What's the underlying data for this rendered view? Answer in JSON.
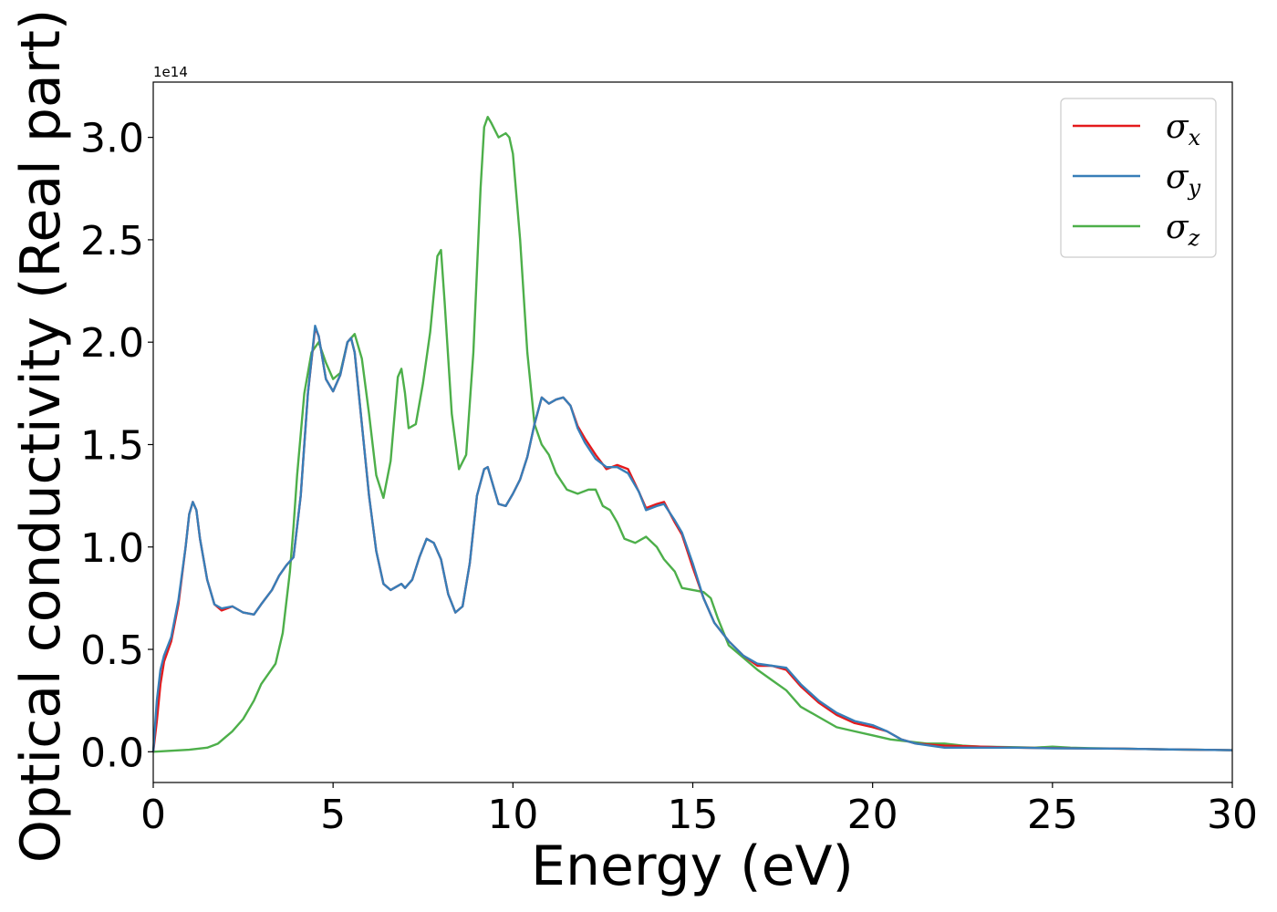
{
  "chart_data": {
    "type": "line",
    "xlabel": "Energy (eV)",
    "ylabel": "Optical conductivity (Real part)",
    "y_offset_label": "1e14",
    "xlim": [
      0,
      30
    ],
    "ylim": [
      -0.15,
      3.27
    ],
    "x_ticks": [
      0,
      5,
      10,
      15,
      20,
      25,
      30
    ],
    "x_tick_labels": [
      "0",
      "5",
      "10",
      "15",
      "20",
      "25",
      "30"
    ],
    "y_ticks": [
      0.0,
      0.5,
      1.0,
      1.5,
      2.0,
      2.5,
      3.0
    ],
    "y_tick_labels": [
      "0.0",
      "0.5",
      "1.0",
      "1.5",
      "2.0",
      "2.5",
      "3.0"
    ],
    "grid": false,
    "legend_position": "top-right",
    "series": [
      {
        "name": "σx",
        "symbol": "σ",
        "subscript": "x",
        "color": "#e41a1c",
        "x": [
          0,
          0.1,
          0.2,
          0.3,
          0.5,
          0.7,
          0.9,
          1.0,
          1.1,
          1.2,
          1.3,
          1.5,
          1.7,
          1.9,
          2.2,
          2.5,
          2.8,
          3.0,
          3.3,
          3.5,
          3.7,
          3.9,
          4.1,
          4.3,
          4.5,
          4.6,
          4.8,
          5.0,
          5.2,
          5.4,
          5.5,
          5.6,
          5.8,
          6.0,
          6.2,
          6.4,
          6.6,
          6.8,
          6.9,
          7.0,
          7.2,
          7.4,
          7.6,
          7.8,
          8.0,
          8.2,
          8.4,
          8.6,
          8.8,
          9.0,
          9.2,
          9.3,
          9.4,
          9.6,
          9.8,
          10.0,
          10.2,
          10.4,
          10.6,
          10.8,
          11.0,
          11.2,
          11.4,
          11.6,
          11.8,
          12.0,
          12.3,
          12.6,
          12.9,
          13.2,
          13.5,
          13.7,
          14.0,
          14.2,
          14.5,
          14.7,
          15.0,
          15.3,
          15.6,
          16.0,
          16.4,
          16.8,
          17.2,
          17.6,
          18.0,
          18.5,
          19.0,
          19.5,
          20.0,
          20.4,
          20.8,
          21.2,
          22.0,
          23.0,
          24.0,
          25.0,
          26.0,
          27.0,
          28.0,
          29.0,
          30.0
        ],
        "values": [
          0.0,
          0.15,
          0.33,
          0.44,
          0.54,
          0.72,
          1.0,
          1.16,
          1.22,
          1.18,
          1.04,
          0.84,
          0.72,
          0.69,
          0.71,
          0.68,
          0.67,
          0.72,
          0.79,
          0.86,
          0.91,
          0.95,
          1.25,
          1.75,
          2.07,
          2.03,
          1.82,
          1.76,
          1.84,
          2.0,
          2.02,
          1.95,
          1.6,
          1.25,
          0.98,
          0.82,
          0.79,
          0.81,
          0.82,
          0.8,
          0.84,
          0.95,
          1.04,
          1.02,
          0.94,
          0.77,
          0.68,
          0.71,
          0.92,
          1.25,
          1.38,
          1.39,
          1.33,
          1.21,
          1.2,
          1.26,
          1.33,
          1.44,
          1.6,
          1.73,
          1.7,
          1.72,
          1.73,
          1.69,
          1.59,
          1.53,
          1.45,
          1.38,
          1.4,
          1.38,
          1.27,
          1.19,
          1.21,
          1.22,
          1.12,
          1.06,
          0.9,
          0.75,
          0.63,
          0.54,
          0.47,
          0.42,
          0.42,
          0.4,
          0.32,
          0.24,
          0.18,
          0.14,
          0.12,
          0.1,
          0.06,
          0.04,
          0.03,
          0.025,
          0.02,
          0.018,
          0.016,
          0.015,
          0.012,
          0.01,
          0.008
        ]
      },
      {
        "name": "σy",
        "symbol": "σ",
        "subscript": "y",
        "color": "#377eb8",
        "x": [
          0,
          0.1,
          0.2,
          0.3,
          0.5,
          0.7,
          0.9,
          1.0,
          1.1,
          1.2,
          1.3,
          1.5,
          1.7,
          1.9,
          2.2,
          2.5,
          2.8,
          3.0,
          3.3,
          3.5,
          3.7,
          3.9,
          4.1,
          4.3,
          4.5,
          4.6,
          4.8,
          5.0,
          5.2,
          5.4,
          5.5,
          5.6,
          5.8,
          6.0,
          6.2,
          6.4,
          6.6,
          6.8,
          6.9,
          7.0,
          7.2,
          7.4,
          7.6,
          7.8,
          8.0,
          8.2,
          8.4,
          8.6,
          8.8,
          9.0,
          9.2,
          9.3,
          9.4,
          9.6,
          9.8,
          10.0,
          10.2,
          10.4,
          10.6,
          10.8,
          11.0,
          11.2,
          11.4,
          11.6,
          11.8,
          12.0,
          12.3,
          12.6,
          12.9,
          13.2,
          13.5,
          13.7,
          14.0,
          14.2,
          14.5,
          14.7,
          15.0,
          15.3,
          15.6,
          16.0,
          16.4,
          16.8,
          17.2,
          17.6,
          18.0,
          18.5,
          19.0,
          19.5,
          20.0,
          20.4,
          20.8,
          21.2,
          22.0,
          23.0,
          24.0,
          25.0,
          26.0,
          27.0,
          28.0,
          29.0,
          30.0
        ],
        "values": [
          0.0,
          0.25,
          0.4,
          0.47,
          0.56,
          0.74,
          1.0,
          1.16,
          1.22,
          1.18,
          1.04,
          0.84,
          0.72,
          0.7,
          0.71,
          0.68,
          0.67,
          0.72,
          0.79,
          0.86,
          0.91,
          0.95,
          1.25,
          1.75,
          2.08,
          2.03,
          1.82,
          1.76,
          1.84,
          2.0,
          2.02,
          1.95,
          1.6,
          1.25,
          0.98,
          0.82,
          0.79,
          0.81,
          0.82,
          0.8,
          0.84,
          0.95,
          1.04,
          1.02,
          0.94,
          0.77,
          0.68,
          0.71,
          0.92,
          1.25,
          1.38,
          1.39,
          1.33,
          1.21,
          1.2,
          1.26,
          1.33,
          1.44,
          1.6,
          1.73,
          1.7,
          1.72,
          1.73,
          1.69,
          1.58,
          1.51,
          1.43,
          1.39,
          1.39,
          1.36,
          1.27,
          1.18,
          1.2,
          1.21,
          1.13,
          1.07,
          0.92,
          0.75,
          0.63,
          0.54,
          0.47,
          0.43,
          0.42,
          0.41,
          0.33,
          0.25,
          0.19,
          0.15,
          0.13,
          0.1,
          0.06,
          0.04,
          0.02,
          0.02,
          0.02,
          0.017,
          0.016,
          0.015,
          0.012,
          0.01,
          0.008
        ]
      },
      {
        "name": "σz",
        "symbol": "σ",
        "subscript": "z",
        "color": "#4daf4a",
        "x": [
          0,
          0.5,
          1.0,
          1.5,
          1.8,
          2.0,
          2.2,
          2.5,
          2.8,
          3.0,
          3.2,
          3.4,
          3.6,
          3.8,
          3.9,
          4.0,
          4.1,
          4.2,
          4.4,
          4.6,
          4.8,
          5.0,
          5.2,
          5.4,
          5.6,
          5.8,
          6.0,
          6.2,
          6.4,
          6.6,
          6.8,
          6.9,
          7.0,
          7.1,
          7.3,
          7.5,
          7.7,
          7.9,
          8.0,
          8.1,
          8.3,
          8.5,
          8.7,
          8.9,
          9.1,
          9.2,
          9.3,
          9.4,
          9.6,
          9.8,
          9.9,
          10.0,
          10.2,
          10.4,
          10.6,
          10.8,
          11.0,
          11.2,
          11.5,
          11.8,
          12.1,
          12.3,
          12.5,
          12.7,
          12.9,
          13.1,
          13.4,
          13.7,
          14.0,
          14.2,
          14.5,
          14.7,
          15.0,
          15.3,
          15.5,
          15.7,
          16.0,
          16.4,
          16.8,
          17.2,
          17.6,
          18.0,
          18.5,
          19.0,
          19.5,
          20.0,
          20.5,
          21.0,
          21.5,
          22.0,
          22.5,
          23.0,
          24.0,
          24.5,
          25.0,
          25.5,
          26.0,
          27.0,
          28.0,
          29.0,
          30.0
        ],
        "values": [
          0.0,
          0.005,
          0.01,
          0.02,
          0.04,
          0.07,
          0.1,
          0.16,
          0.25,
          0.33,
          0.38,
          0.43,
          0.58,
          0.88,
          1.1,
          1.35,
          1.55,
          1.75,
          1.95,
          2.0,
          1.9,
          1.82,
          1.85,
          2.0,
          2.04,
          1.92,
          1.65,
          1.35,
          1.24,
          1.42,
          1.83,
          1.87,
          1.75,
          1.58,
          1.6,
          1.8,
          2.05,
          2.42,
          2.45,
          2.2,
          1.65,
          1.38,
          1.45,
          1.95,
          2.75,
          3.05,
          3.1,
          3.07,
          3.0,
          3.02,
          3.0,
          2.92,
          2.5,
          1.95,
          1.6,
          1.5,
          1.45,
          1.36,
          1.28,
          1.26,
          1.28,
          1.28,
          1.2,
          1.18,
          1.12,
          1.04,
          1.02,
          1.05,
          1.0,
          0.94,
          0.88,
          0.8,
          0.79,
          0.78,
          0.75,
          0.65,
          0.52,
          0.46,
          0.4,
          0.35,
          0.3,
          0.22,
          0.17,
          0.12,
          0.1,
          0.08,
          0.06,
          0.05,
          0.04,
          0.04,
          0.03,
          0.025,
          0.022,
          0.02,
          0.025,
          0.02,
          0.018,
          0.015,
          0.012,
          0.01,
          0.008
        ]
      }
    ]
  }
}
